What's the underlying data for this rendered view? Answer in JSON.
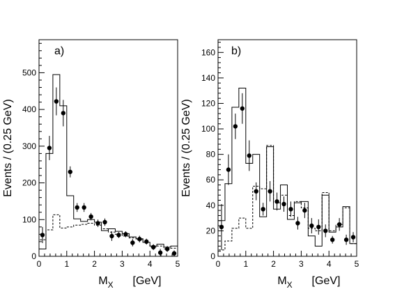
{
  "chart_data": [
    {
      "type": "scatter",
      "panel_label": "a)",
      "xlabel_main": "M",
      "xlabel_sub": "X",
      "xlabel_unit": "[GeV]",
      "ylabel": "Events / (0.25 GeV)",
      "xlim": [
        0,
        5
      ],
      "ylim": [
        0,
        590
      ],
      "xticks": [
        0,
        1,
        2,
        3,
        4,
        5
      ],
      "yticks": [
        0,
        100,
        200,
        300,
        400,
        500
      ],
      "grid": false,
      "series": [
        {
          "style": "points-with-error-bars",
          "x": [
            0.125,
            0.375,
            0.625,
            0.875,
            1.125,
            1.375,
            1.625,
            1.875,
            2.125,
            2.375,
            2.625,
            2.875,
            3.125,
            3.375,
            3.625,
            3.875,
            4.125,
            4.375,
            4.625,
            4.875
          ],
          "y": [
            58,
            295,
            422,
            390,
            230,
            133,
            133,
            108,
            90,
            93,
            55,
            58,
            60,
            37,
            47,
            40,
            25,
            10,
            20,
            8
          ],
          "err": [
            22,
            33,
            38,
            36,
            15,
            12,
            12,
            10,
            10,
            10,
            13,
            8,
            8,
            10,
            9,
            8,
            8,
            10,
            8,
            8
          ]
        },
        {
          "style": "solid-histogram",
          "edges": [
            0,
            0.25,
            0.5,
            0.75,
            1.0,
            1.25,
            1.5,
            1.75,
            2.0,
            2.25,
            2.5,
            2.75,
            3.0,
            3.25,
            3.5,
            3.75,
            4.0,
            4.25,
            4.5,
            4.75,
            5.0
          ],
          "values": [
            20,
            280,
            495,
            410,
            165,
            102,
            95,
            100,
            93,
            70,
            75,
            68,
            62,
            53,
            48,
            38,
            28,
            33,
            25,
            28
          ]
        },
        {
          "style": "dashed-histogram",
          "edges": [
            0,
            0.25,
            0.5,
            0.75,
            1.0,
            1.25,
            1.5,
            1.75,
            2.0,
            2.25,
            2.5,
            2.75,
            3.0,
            3.25,
            3.5,
            3.75,
            4.0,
            4.25,
            4.5,
            4.75,
            5.0
          ],
          "values": [
            45,
            72,
            113,
            77,
            80,
            85,
            87,
            90,
            85,
            75,
            66,
            60,
            55,
            50,
            45,
            38,
            25,
            28,
            20,
            22
          ]
        }
      ]
    },
    {
      "type": "scatter",
      "panel_label": "b)",
      "xlabel_main": "M",
      "xlabel_sub": "X",
      "xlabel_unit": "[GeV]",
      "ylabel": "Events / (0.25 GeV)",
      "xlim": [
        0,
        5
      ],
      "ylim": [
        0,
        170
      ],
      "xticks": [
        0,
        1,
        2,
        3,
        4,
        5
      ],
      "yticks": [
        0,
        20,
        40,
        60,
        80,
        100,
        120,
        140,
        160
      ],
      "grid": false,
      "series": [
        {
          "style": "points-with-error-bars",
          "x": [
            0.125,
            0.375,
            0.625,
            0.875,
            1.125,
            1.375,
            1.625,
            1.875,
            2.125,
            2.375,
            2.625,
            2.875,
            3.125,
            3.375,
            3.625,
            3.875,
            4.125,
            4.375,
            4.625,
            4.875
          ],
          "y": [
            23,
            68,
            102,
            116,
            79,
            51,
            37,
            51,
            43,
            41,
            37,
            26,
            36,
            24,
            23,
            20,
            13,
            25,
            13,
            15
          ],
          "err": [
            18,
            12,
            10,
            12,
            12,
            7,
            5,
            8,
            7,
            6,
            6,
            5,
            6,
            6,
            6,
            5,
            3,
            5,
            4,
            4
          ]
        },
        {
          "style": "solid-histogram",
          "edges": [
            0,
            0.25,
            0.5,
            0.75,
            1.0,
            1.25,
            1.5,
            1.75,
            2.0,
            2.25,
            2.5,
            2.75,
            3.0,
            3.25,
            3.5,
            3.75,
            4.0,
            4.25,
            4.5,
            4.75,
            5.0
          ],
          "values": [
            28,
            57,
            117,
            132,
            73,
            80,
            31,
            86,
            37,
            56,
            29,
            42,
            43,
            16,
            8,
            48,
            19,
            23,
            39,
            10
          ]
        },
        {
          "style": "dashed-histogram",
          "edges": [
            0,
            0.25,
            0.5,
            0.75,
            1.0,
            1.25,
            1.5,
            1.75,
            2.0,
            2.25,
            2.5,
            2.75,
            3.0,
            3.25,
            3.5,
            3.75,
            4.0,
            4.25,
            4.5,
            4.75,
            5.0
          ],
          "values": [
            5,
            12,
            22,
            30,
            22,
            55,
            53,
            87,
            42,
            48,
            32,
            43,
            38,
            22,
            20,
            50,
            20,
            25,
            38,
            10
          ]
        }
      ]
    }
  ]
}
